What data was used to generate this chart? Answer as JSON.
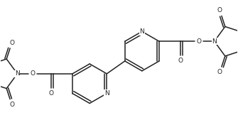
{
  "bg_color": "#ffffff",
  "line_color": "#222222",
  "line_width": 1.1,
  "font_size": 6.5,
  "figsize": [
    3.35,
    1.69
  ],
  "dpi": 100,
  "xlim": [
    0,
    335
  ],
  "ylim": [
    0,
    169
  ]
}
